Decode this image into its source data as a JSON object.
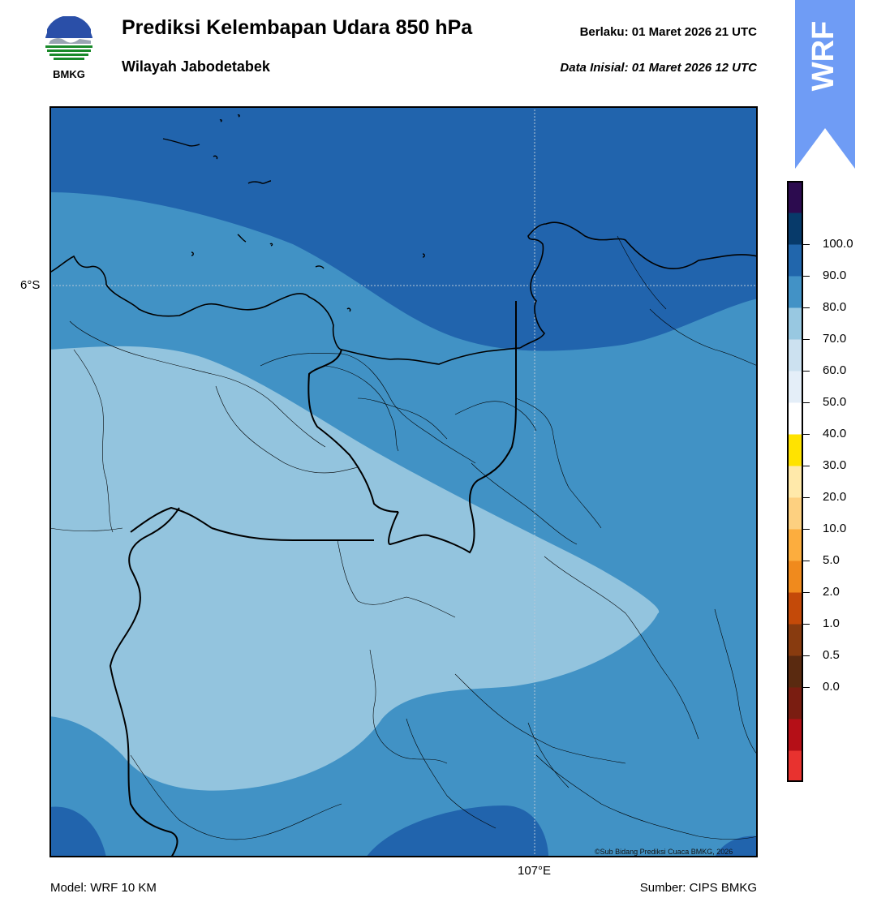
{
  "header": {
    "title": "Prediksi Kelembapan Udara 850 hPa",
    "subtitle": "Wilayah Jabodetabek",
    "valid_time": "Berlaku:  01 Maret 2026 21 UTC",
    "init_time": "Data Inisial:  01 Maret 2026 12 UTC"
  },
  "logo": {
    "name": "bmkg-logo",
    "text": "BMKG"
  },
  "badge": {
    "text": "WRF",
    "color": "#6f9cf5"
  },
  "map": {
    "lat_label": "6°S",
    "lon_label": "107°E",
    "copyright": "©Sub Bidang Prediksi Cuaca BMKG, 2026",
    "colors": {
      "band_80_90": "#2164ad",
      "band_70_80": "#4192c5",
      "band_60_70": "#93c4de",
      "coastline": "#000000",
      "boundary": "#000000"
    }
  },
  "colorbar": {
    "ticks": [
      "100.0",
      "90.0",
      "80.0",
      "70.0",
      "60.0",
      "50.0",
      "40.0",
      "30.0",
      "20.0",
      "10.0",
      "5.0",
      "2.0",
      "1.0",
      "0.5",
      "0.0"
    ],
    "colors": [
      "#e8322f",
      "#b50f17",
      "#7a1d11",
      "#5a2a10",
      "#883b0f",
      "#c44a09",
      "#f08a1d",
      "#fcad3e",
      "#fdd080",
      "#ffe9aa",
      "#ffe300",
      "#ffffff",
      "#e4eef8",
      "#cce1f0",
      "#98c8e1",
      "#4292c6",
      "#2166ac",
      "#073a6a",
      "#2c0b4f"
    ]
  },
  "footer": {
    "model": "Model: WRF 10 KM",
    "source": "Sumber: CIPS BMKG"
  }
}
